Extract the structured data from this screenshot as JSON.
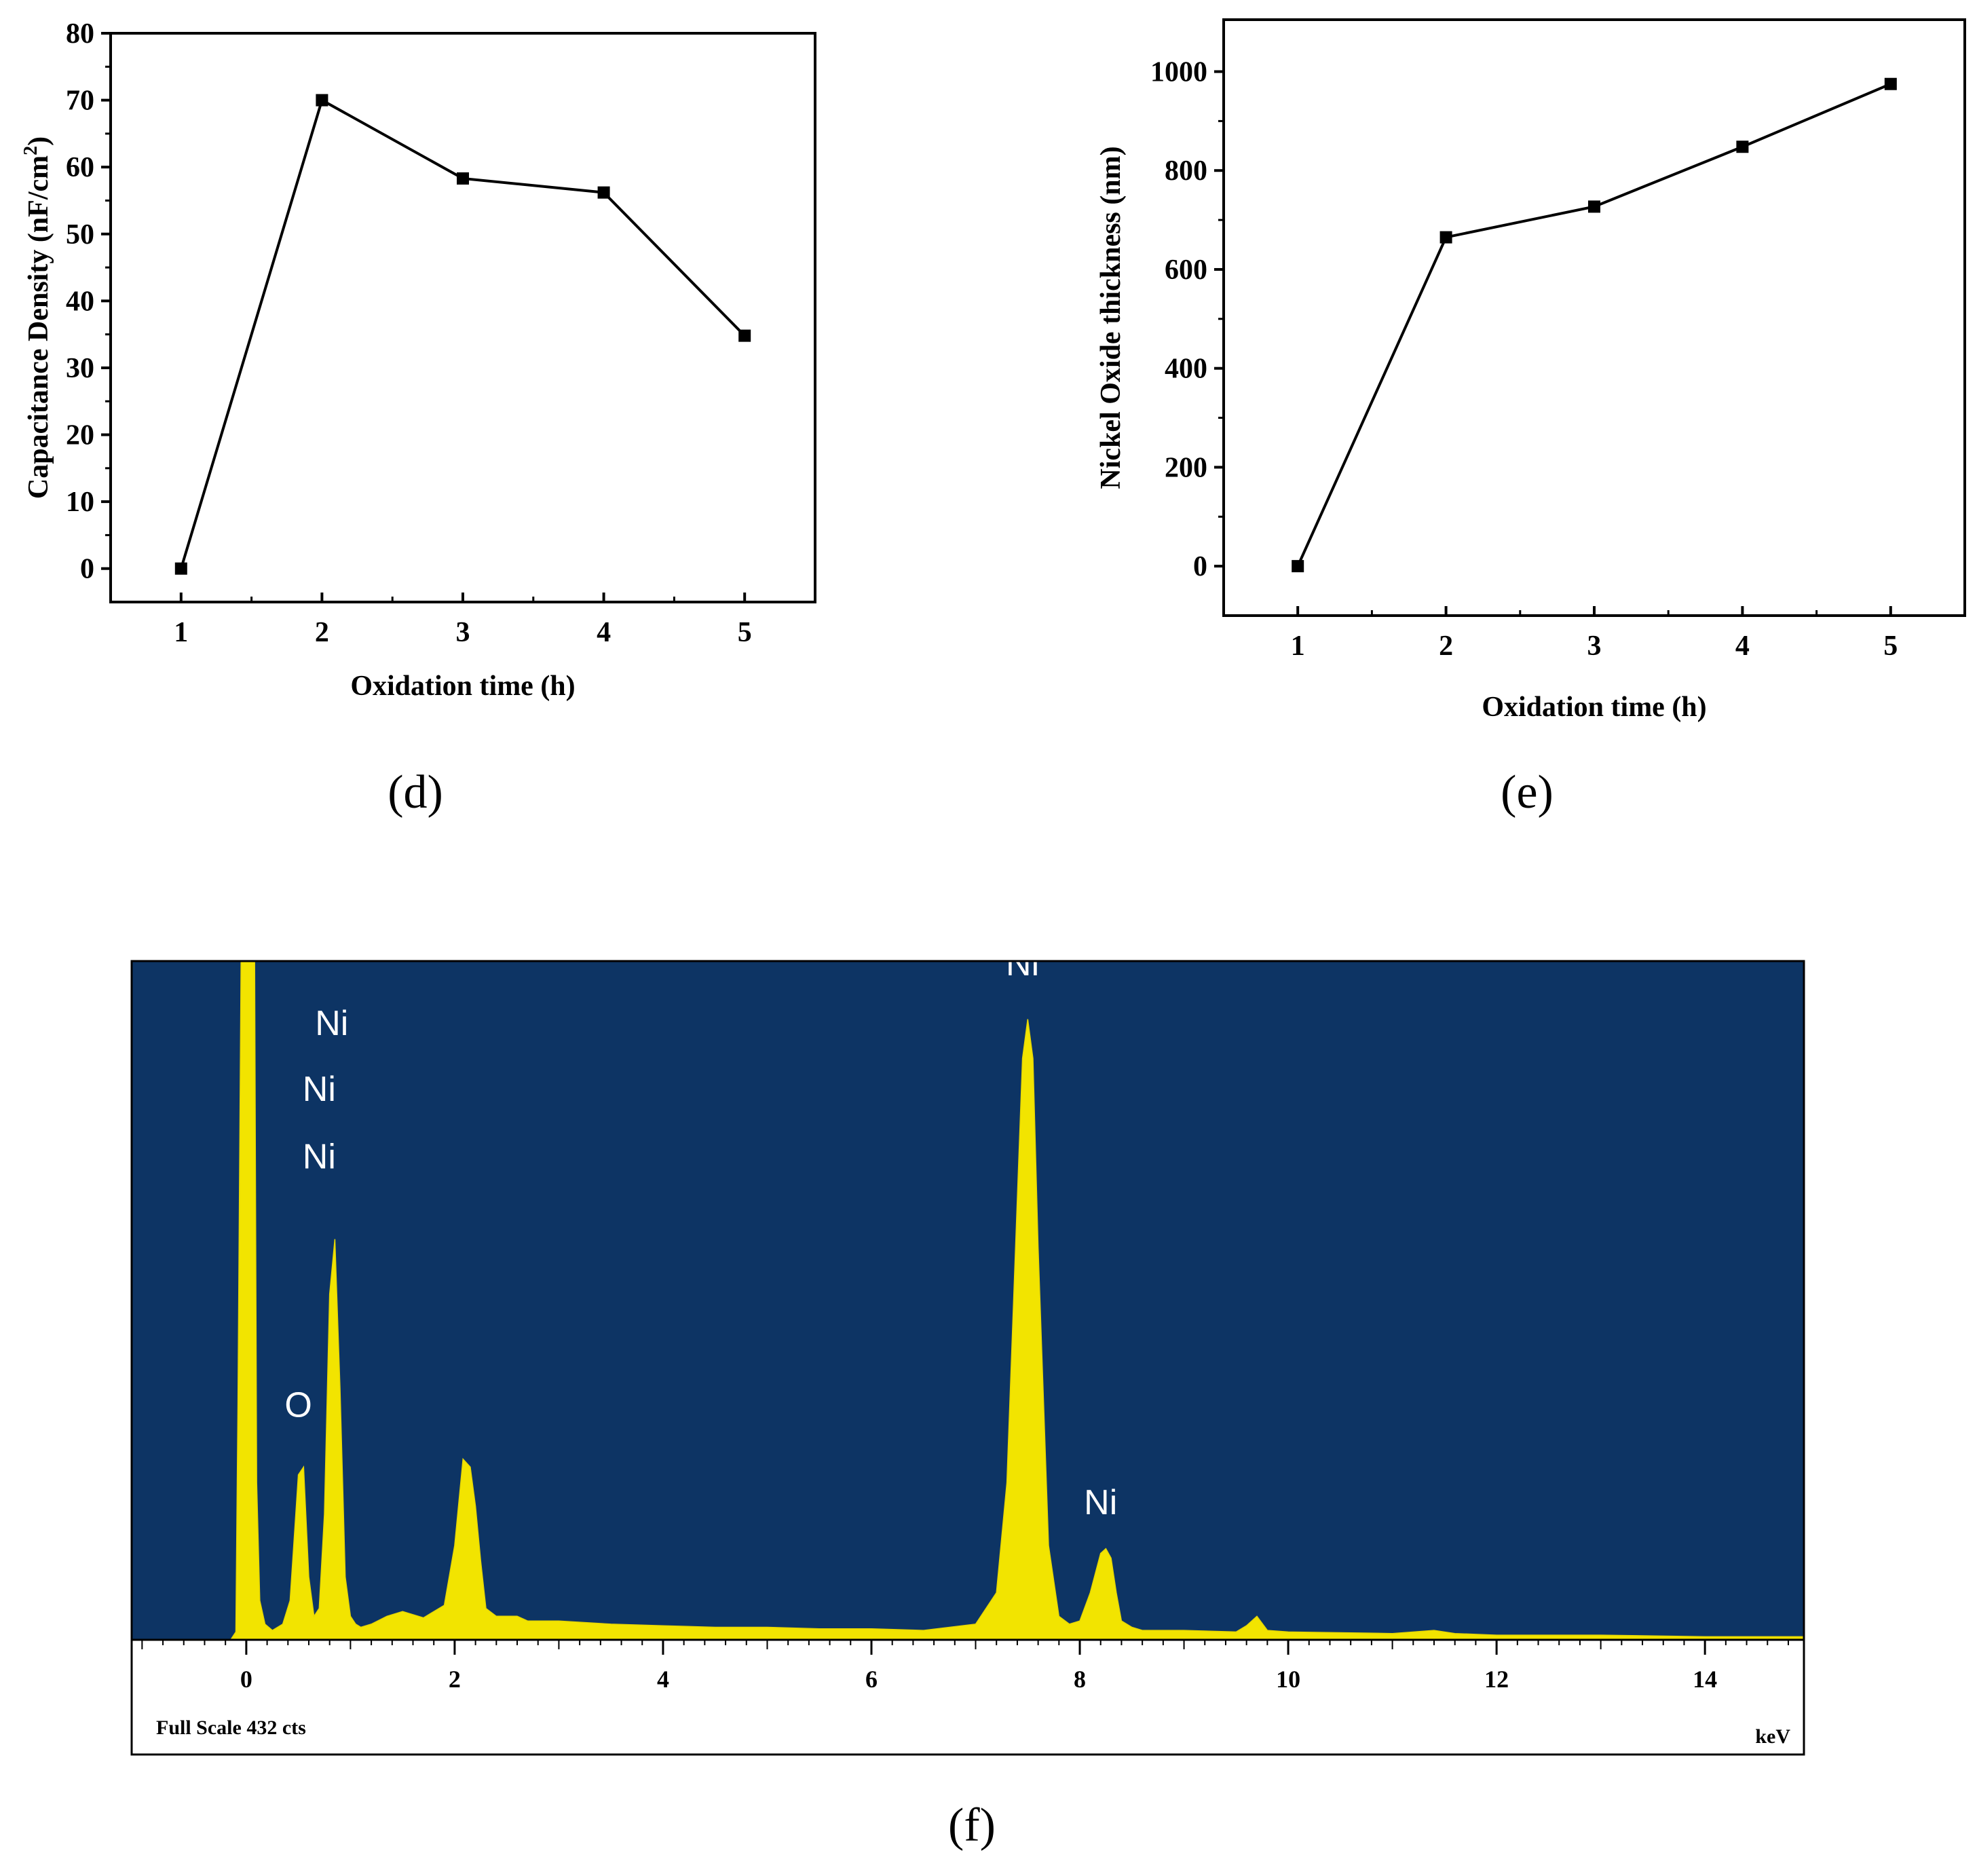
{
  "colors": {
    "line": "#000000",
    "marker": "#000000",
    "eds_background": "#0d3464",
    "eds_spectrum": "#f2e400",
    "eds_text": "#ffffff"
  },
  "panels": {
    "d": {
      "caption": "(d)"
    },
    "e": {
      "caption": "(e)"
    },
    "f": {
      "caption": "(f)"
    }
  },
  "chart_data": [
    {
      "id": "d",
      "type": "line",
      "marker": "square",
      "xlabel": "Oxidation time (h)",
      "ylabel": "Capacitance Density (nF/cm²)",
      "ylabel_parts": {
        "main": "Capacitance Density (nF/cm",
        "sup": "2",
        "end": ")"
      },
      "x": [
        1,
        2,
        3,
        4,
        5
      ],
      "y": [
        0,
        70,
        58.3,
        56.2,
        34.8
      ],
      "xticks": [
        1,
        2,
        3,
        4,
        5
      ],
      "yticks": [
        0,
        10,
        20,
        30,
        40,
        50,
        60,
        70,
        80
      ],
      "xlim": [
        0.5,
        5.5
      ],
      "ylim": [
        -5,
        80
      ],
      "grid": false
    },
    {
      "id": "e",
      "type": "line",
      "marker": "square",
      "xlabel": "Oxidation time (h)",
      "ylabel": "Nickel Oxide thickness (nm)",
      "x": [
        1,
        2,
        3,
        4,
        5
      ],
      "y": [
        0,
        665,
        727,
        848,
        975
      ],
      "xticks": [
        1,
        2,
        3,
        4,
        5
      ],
      "yticks": [
        0,
        200,
        400,
        600,
        800,
        1000
      ],
      "xlim": [
        0.5,
        5.5
      ],
      "ylim": [
        -100,
        1105
      ],
      "grid": false
    },
    {
      "id": "f",
      "type": "area",
      "xlabel": "keV",
      "xticks": [
        0,
        2,
        4,
        6,
        8,
        10,
        12,
        14
      ],
      "xlim": [
        -1.1,
        14.95
      ],
      "full_scale": "Full Scale 432 cts",
      "grid": false,
      "spectrum_x": [
        -0.3,
        -0.15,
        -0.1,
        -0.08,
        -0.05,
        0.08,
        0.1,
        0.13,
        0.18,
        0.25,
        0.35,
        0.42,
        0.5,
        0.55,
        0.6,
        0.65,
        0.7,
        0.75,
        0.8,
        0.85,
        0.9,
        0.95,
        1.0,
        1.05,
        1.1,
        1.2,
        1.35,
        1.5,
        1.7,
        1.9,
        2.0,
        2.08,
        2.15,
        2.2,
        2.25,
        2.3,
        2.4,
        2.6,
        2.7,
        3.0,
        3.5,
        4.0,
        4.5,
        5.0,
        5.5,
        6.0,
        6.5,
        7.0,
        7.2,
        7.3,
        7.4,
        7.45,
        7.5,
        7.55,
        7.6,
        7.7,
        7.8,
        7.9,
        8.0,
        8.1,
        8.2,
        8.25,
        8.3,
        8.35,
        8.4,
        8.5,
        8.6,
        9.0,
        9.5,
        9.6,
        9.7,
        9.8,
        10.0,
        11.0,
        11.4,
        11.6,
        12.0,
        13.0,
        14.0,
        14.95
      ],
      "spectrum_y": [
        0,
        0,
        5,
        150,
        1000,
        1000,
        100,
        25,
        10,
        6,
        10,
        25,
        105,
        110,
        40,
        15,
        20,
        80,
        220,
        255,
        160,
        40,
        15,
        10,
        8,
        10,
        15,
        18,
        14,
        22,
        60,
        115,
        110,
        85,
        50,
        20,
        15,
        15,
        12,
        12,
        10,
        9,
        8,
        8,
        7,
        7,
        6,
        10,
        30,
        100,
        280,
        370,
        395,
        370,
        250,
        60,
        15,
        10,
        12,
        30,
        55,
        58,
        52,
        30,
        12,
        8,
        6,
        6,
        5,
        9,
        15,
        6,
        5,
        4,
        6,
        4,
        3,
        3,
        2,
        2
      ],
      "annotations": [
        {
          "text": "Ni",
          "x": 0.82,
          "y": 385
        },
        {
          "text": "Ni",
          "x": 0.7,
          "y": 343
        },
        {
          "text": "Ni",
          "x": 0.7,
          "y": 300
        },
        {
          "text": "O",
          "x": 0.5,
          "y": 142
        },
        {
          "text": "Ni",
          "x": 7.45,
          "y": 423
        },
        {
          "text": "Ni",
          "x": 8.2,
          "y": 80
        }
      ]
    }
  ]
}
